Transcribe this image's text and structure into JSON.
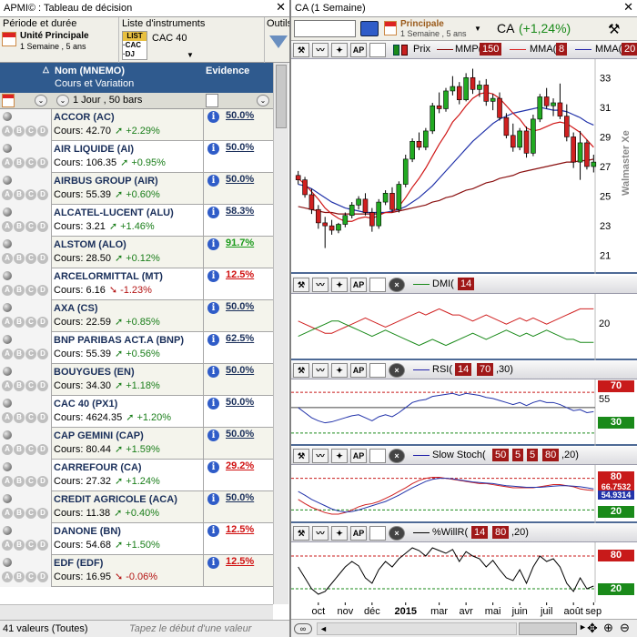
{
  "left_pane": {
    "title": "APMI© : Tableau de décision",
    "close": "✕",
    "params": {
      "period_label": "Période et durée",
      "period_value": "Unité Principale",
      "period_sub": "1 Semaine , 5 ans",
      "instruments_label": "Liste d'instruments",
      "instruments_value": "CAC 40",
      "instrument_chip1": "LIST",
      "instrument_chip2": "·CAC",
      "instrument_chip3": "·DJ",
      "tools_label": "Outils"
    },
    "header": {
      "name_col": "Nom (MNEMO)",
      "name_sub": "Cours et Variation",
      "evidence_col": "Evidence",
      "filter_text": "1 Jour , 50 bars"
    },
    "rows": [
      {
        "name": "ACCOR (AC)",
        "cours": "Cours: 42.70",
        "chg": "+2.29%",
        "dir": "up",
        "ev": "50.0%",
        "evc": "neutral"
      },
      {
        "name": "AIR LIQUIDE (AI)",
        "cours": "Cours: 106.35",
        "chg": "+0.95%",
        "dir": "up",
        "ev": "50.0%",
        "evc": "neutral"
      },
      {
        "name": "AIRBUS GROUP (AIR)",
        "cours": "Cours: 55.39",
        "chg": "+0.60%",
        "dir": "up",
        "ev": "50.0%",
        "evc": "neutral"
      },
      {
        "name": "ALCATEL-LUCENT (ALU)",
        "cours": "Cours: 3.21",
        "chg": "+1.46%",
        "dir": "up",
        "ev": "58.3%",
        "evc": "neutral"
      },
      {
        "name": "ALSTOM (ALO)",
        "cours": "Cours: 28.50",
        "chg": "+0.12%",
        "dir": "up",
        "ev": "91.7%",
        "evc": "green"
      },
      {
        "name": "ARCELORMITTAL (MT)",
        "cours": "Cours: 6.16",
        "chg": "-1.23%",
        "dir": "dn",
        "ev": "12.5%",
        "evc": "red"
      },
      {
        "name": "AXA (CS)",
        "cours": "Cours: 22.59",
        "chg": "+0.85%",
        "dir": "up",
        "ev": "50.0%",
        "evc": "neutral"
      },
      {
        "name": "BNP PARIBAS ACT.A (BNP)",
        "cours": "Cours: 55.39",
        "chg": "+0.56%",
        "dir": "up",
        "ev": "62.5%",
        "evc": "neutral"
      },
      {
        "name": "BOUYGUES (EN)",
        "cours": "Cours: 34.30",
        "chg": "+1.18%",
        "dir": "up",
        "ev": "50.0%",
        "evc": "neutral"
      },
      {
        "name": "CAC 40 (PX1)",
        "cours": "Cours: 4624.35",
        "chg": "+1.20%",
        "dir": "up",
        "ev": "50.0%",
        "evc": "neutral"
      },
      {
        "name": "CAP GEMINI (CAP)",
        "cours": "Cours: 80.44",
        "chg": "+1.59%",
        "dir": "up",
        "ev": "50.0%",
        "evc": "neutral"
      },
      {
        "name": "CARREFOUR (CA)",
        "cours": "Cours: 27.32",
        "chg": "+1.24%",
        "dir": "up",
        "ev": "29.2%",
        "evc": "red"
      },
      {
        "name": "CREDIT AGRICOLE (ACA)",
        "cours": "Cours: 11.38",
        "chg": "+0.40%",
        "dir": "up",
        "ev": "50.0%",
        "evc": "neutral"
      },
      {
        "name": "DANONE (BN)",
        "cours": "Cours: 54.68",
        "chg": "+1.50%",
        "dir": "up",
        "ev": "12.5%",
        "evc": "red"
      },
      {
        "name": "EDF (EDF)",
        "cours": "Cours: 16.95",
        "chg": "-0.06%",
        "dir": "dn",
        "ev": "12.5%",
        "evc": "red"
      }
    ],
    "status": "41 valeurs (Toutes)",
    "status_hint": "Tapez le début d'une valeur"
  },
  "right_pane": {
    "title": "CA (1 Semaine)",
    "close": "✕",
    "toolbar": {
      "period": "Principale",
      "period_sub": "1 Semaine , 5 ans",
      "symbol": "CA",
      "change": "(+1,24%)"
    },
    "main_chart": {
      "legend_price": "Prix",
      "legend_mmp": "MMP(",
      "mmp_val": "150",
      "legend_mma1": "MMA(",
      "mma1_val": "8",
      "legend_mma2": "MMA(",
      "mma2_val": "20",
      "y_ticks": [
        "33",
        "31",
        "29",
        "27",
        "25",
        "23",
        "21"
      ],
      "watermark": "Walmaster Xe",
      "candles": [
        {
          "o": 26.4,
          "h": 26.7,
          "l": 25.8,
          "c": 26.1
        },
        {
          "o": 26.1,
          "h": 26.3,
          "l": 24.9,
          "c": 25.1
        },
        {
          "o": 25.1,
          "h": 25.5,
          "l": 23.8,
          "c": 24.1
        },
        {
          "o": 24.1,
          "h": 24.4,
          "l": 22.8,
          "c": 23.2
        },
        {
          "o": 23.2,
          "h": 23.6,
          "l": 21.5,
          "c": 23.0
        },
        {
          "o": 23.0,
          "h": 23.4,
          "l": 22.4,
          "c": 22.7
        },
        {
          "o": 22.7,
          "h": 23.2,
          "l": 22.5,
          "c": 23.1
        },
        {
          "o": 23.1,
          "h": 23.9,
          "l": 22.9,
          "c": 23.7
        },
        {
          "o": 23.7,
          "h": 24.6,
          "l": 23.5,
          "c": 24.4
        },
        {
          "o": 24.4,
          "h": 25.0,
          "l": 24.1,
          "c": 24.8
        },
        {
          "o": 24.8,
          "h": 25.2,
          "l": 23.7,
          "c": 23.9
        },
        {
          "o": 23.9,
          "h": 24.2,
          "l": 22.6,
          "c": 23.0
        },
        {
          "o": 23.0,
          "h": 24.8,
          "l": 22.8,
          "c": 24.6
        },
        {
          "o": 24.6,
          "h": 25.4,
          "l": 24.4,
          "c": 25.2
        },
        {
          "o": 25.2,
          "h": 25.6,
          "l": 23.9,
          "c": 24.1
        },
        {
          "o": 24.1,
          "h": 26.0,
          "l": 23.9,
          "c": 25.8
        },
        {
          "o": 25.8,
          "h": 27.8,
          "l": 25.6,
          "c": 27.5
        },
        {
          "o": 27.5,
          "h": 28.9,
          "l": 27.3,
          "c": 28.7
        },
        {
          "o": 28.7,
          "h": 29.3,
          "l": 28.1,
          "c": 28.3
        },
        {
          "o": 28.3,
          "h": 29.6,
          "l": 28.1,
          "c": 29.4
        },
        {
          "o": 29.4,
          "h": 31.3,
          "l": 29.2,
          "c": 31.1
        },
        {
          "o": 31.1,
          "h": 32.0,
          "l": 30.6,
          "c": 30.9
        },
        {
          "o": 30.9,
          "h": 32.3,
          "l": 30.7,
          "c": 32.1
        },
        {
          "o": 32.1,
          "h": 33.1,
          "l": 31.8,
          "c": 32.4
        },
        {
          "o": 32.4,
          "h": 32.7,
          "l": 31.2,
          "c": 31.5
        },
        {
          "o": 31.5,
          "h": 33.3,
          "l": 31.4,
          "c": 33.0
        },
        {
          "o": 33.0,
          "h": 33.6,
          "l": 31.9,
          "c": 32.2
        },
        {
          "o": 32.2,
          "h": 32.8,
          "l": 31.7,
          "c": 32.5
        },
        {
          "o": 32.5,
          "h": 32.9,
          "l": 31.1,
          "c": 31.4
        },
        {
          "o": 31.4,
          "h": 31.9,
          "l": 30.8,
          "c": 31.6
        },
        {
          "o": 31.6,
          "h": 32.0,
          "l": 30.1,
          "c": 30.3
        },
        {
          "o": 30.3,
          "h": 30.6,
          "l": 28.9,
          "c": 29.1
        },
        {
          "o": 29.1,
          "h": 29.9,
          "l": 28.0,
          "c": 28.3
        },
        {
          "o": 28.3,
          "h": 29.6,
          "l": 28.1,
          "c": 29.4
        },
        {
          "o": 29.4,
          "h": 29.7,
          "l": 27.6,
          "c": 27.9
        },
        {
          "o": 27.9,
          "h": 30.5,
          "l": 27.7,
          "c": 30.2
        },
        {
          "o": 30.2,
          "h": 31.9,
          "l": 30.0,
          "c": 31.7
        },
        {
          "o": 31.7,
          "h": 32.3,
          "l": 30.9,
          "c": 31.1
        },
        {
          "o": 31.1,
          "h": 31.6,
          "l": 30.4,
          "c": 31.3
        },
        {
          "o": 31.3,
          "h": 32.6,
          "l": 30.2,
          "c": 30.4
        },
        {
          "o": 30.4,
          "h": 31.2,
          "l": 28.7,
          "c": 29.0
        },
        {
          "o": 29.0,
          "h": 29.3,
          "l": 26.9,
          "c": 27.3
        },
        {
          "o": 27.3,
          "h": 29.4,
          "l": 26.1,
          "c": 28.6
        },
        {
          "o": 28.6,
          "h": 28.8,
          "l": 26.8,
          "c": 27.0
        },
        {
          "o": 27.0,
          "h": 27.8,
          "l": 26.6,
          "c": 27.3
        }
      ],
      "mma8": [
        26.2,
        25.8,
        25.3,
        24.8,
        24.2,
        23.8,
        23.5,
        23.3,
        23.3,
        23.5,
        23.6,
        23.5,
        23.7,
        23.9,
        23.9,
        24.3,
        24.9,
        25.6,
        26.2,
        26.9,
        27.7,
        28.5,
        29.2,
        30.0,
        30.5,
        31.1,
        31.6,
        31.9,
        32.0,
        31.9,
        31.6,
        31.1,
        30.6,
        30.2,
        29.6,
        29.4,
        29.5,
        29.7,
        29.9,
        30.0,
        29.9,
        29.6,
        29.3,
        28.8,
        28.3
      ],
      "mma20": [
        25.8,
        25.7,
        25.5,
        25.2,
        24.9,
        24.6,
        24.4,
        24.2,
        24.1,
        24.0,
        23.9,
        23.9,
        23.9,
        23.9,
        24.0,
        24.1,
        24.3,
        24.6,
        24.9,
        25.3,
        25.7,
        26.2,
        26.7,
        27.2,
        27.7,
        28.2,
        28.7,
        29.1,
        29.5,
        29.9,
        30.2,
        30.4,
        30.6,
        30.7,
        30.8,
        30.9,
        31.0,
        30.9,
        30.8,
        30.8,
        30.7,
        30.5,
        30.3,
        30.0,
        29.8
      ],
      "mmp150": [
        24.3,
        24.2,
        24.1,
        24.0,
        23.9,
        23.9,
        23.8,
        23.8,
        23.8,
        23.8,
        23.8,
        23.8,
        23.8,
        23.9,
        23.9,
        24.0,
        24.1,
        24.2,
        24.3,
        24.4,
        24.6,
        24.7,
        24.9,
        25.0,
        25.2,
        25.4,
        25.5,
        25.7,
        25.9,
        26.0,
        26.2,
        26.3,
        26.4,
        26.6,
        26.7,
        26.8,
        26.9,
        27.0,
        27.1,
        27.2,
        27.3,
        27.3,
        27.4,
        27.4,
        27.5
      ]
    },
    "dmi": {
      "label": "DMI(",
      "val": "14",
      "y_tick": "20",
      "plus": [
        22,
        21,
        20,
        19,
        18,
        18,
        19,
        20,
        21,
        22,
        23,
        22,
        21,
        20,
        21,
        22,
        23,
        24,
        25,
        24,
        25,
        26,
        25,
        24,
        24,
        23,
        22,
        23,
        24,
        23,
        22,
        21,
        22,
        23,
        22,
        23,
        22,
        21,
        22,
        23,
        24,
        25,
        26,
        26,
        26
      ],
      "minus": [
        17,
        18,
        19,
        20,
        21,
        22,
        22,
        21,
        20,
        19,
        18,
        17,
        18,
        19,
        18,
        17,
        16,
        15,
        14,
        15,
        16,
        15,
        14,
        15,
        16,
        17,
        18,
        17,
        16,
        17,
        18,
        19,
        18,
        17,
        18,
        17,
        18,
        19,
        18,
        17,
        16,
        16,
        15,
        15,
        15
      ]
    },
    "rsi": {
      "label": "RSI(",
      "val1": "14",
      "val2": "70",
      "val3": ",30)",
      "y_mid": "55",
      "tag_hi": "70",
      "tag_lo": "30",
      "values": [
        55,
        50,
        45,
        42,
        40,
        41,
        43,
        45,
        47,
        48,
        45,
        42,
        46,
        48,
        46,
        50,
        55,
        60,
        62,
        63,
        66,
        67,
        68,
        69,
        67,
        69,
        68,
        67,
        65,
        64,
        62,
        60,
        58,
        60,
        57,
        60,
        62,
        60,
        60,
        58,
        55,
        52,
        53,
        50,
        51
      ]
    },
    "stoch": {
      "label": "Slow Stoch(",
      "v1": "50",
      "v2": "5",
      "v3": "5",
      "v4": "80",
      "v5": ",20)",
      "tag_hi": "80",
      "tag_mid1": "66.7532",
      "tag_mid2": "54.9314",
      "tag_lo": "20",
      "k": [
        40,
        32,
        25,
        20,
        15,
        12,
        12,
        15,
        20,
        26,
        30,
        32,
        36,
        42,
        48,
        55,
        62,
        70,
        76,
        80,
        82,
        82,
        80,
        78,
        76,
        74,
        72,
        70,
        70,
        68,
        66,
        64,
        62,
        62,
        62,
        62,
        64,
        66,
        68,
        68,
        66,
        64,
        60,
        58,
        57
      ],
      "d": [
        55,
        48,
        40,
        34,
        28,
        22,
        18,
        16,
        17,
        20,
        24,
        28,
        32,
        36,
        42,
        48,
        55,
        62,
        68,
        74,
        78,
        80,
        80,
        79,
        77,
        75,
        73,
        72,
        71,
        70,
        68,
        66,
        65,
        64,
        63,
        63,
        63,
        64,
        65,
        66,
        66,
        65,
        64,
        62,
        60
      ]
    },
    "willr": {
      "label": "%WillR(",
      "v1": "14",
      "v2": "80",
      "v3": ",20)",
      "tag_hi": "80",
      "tag_lo": "20",
      "values": [
        60,
        40,
        20,
        10,
        15,
        30,
        45,
        60,
        70,
        62,
        40,
        30,
        55,
        70,
        60,
        75,
        85,
        95,
        90,
        80,
        95,
        90,
        85,
        92,
        70,
        88,
        80,
        75,
        60,
        72,
        55,
        40,
        35,
        55,
        30,
        60,
        80,
        70,
        75,
        60,
        30,
        15,
        40,
        20,
        25
      ]
    },
    "x_labels": [
      "oct",
      "nov",
      "déc",
      "2015",
      "mar",
      "avr",
      "mai",
      "juin",
      "juil",
      "août",
      "sep"
    ]
  }
}
